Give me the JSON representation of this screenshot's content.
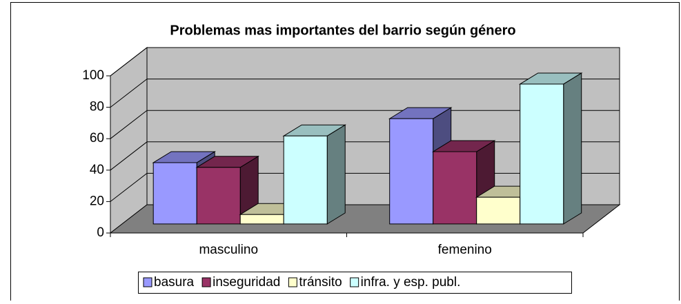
{
  "chart_data": {
    "type": "bar3d",
    "title": "Problemas mas importantes del barrio según género",
    "categories": [
      "masculino",
      "femenino"
    ],
    "series": [
      {
        "name": "basura",
        "color": "#9999ff",
        "values": [
          39,
          67
        ]
      },
      {
        "name": "inseguridad",
        "color": "#993366",
        "values": [
          36,
          46
        ]
      },
      {
        "name": "tránsito",
        "color": "#ffffcc",
        "values": [
          6,
          17
        ]
      },
      {
        "name": "infra. y esp. publ.",
        "color": "#ccffff",
        "values": [
          56,
          89
        ]
      }
    ],
    "ylim": [
      0,
      100
    ],
    "yticks": [
      0,
      20,
      40,
      60,
      80,
      100
    ],
    "grid": true,
    "legend": "bottom"
  }
}
